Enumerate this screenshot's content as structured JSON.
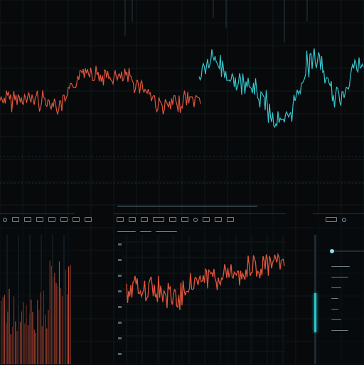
{
  "colors": {
    "background": "#07090b",
    "wave_orange": "#e0563c",
    "wave_cyan": "#35c6cc",
    "grid": "#1a2a30",
    "text": "#8a9aa3"
  },
  "icons": {
    "left_toolbar": [
      "dot-icon",
      "waveform-icon",
      "grid-icon",
      "cursor-icon",
      "zoom-icon",
      "marker-icon",
      "channel-icon",
      "settings-icon"
    ],
    "center_toolbar": [
      "play-icon",
      "record-icon",
      "loop-icon",
      "dot-icon",
      "cut-icon",
      "copy-icon",
      "paste-icon",
      "filter-icon",
      "gain-icon",
      "export-icon"
    ],
    "right_toolbar": [
      "channel-icon",
      "dot-icon"
    ]
  },
  "slider": {
    "level": 0.55
  }
}
